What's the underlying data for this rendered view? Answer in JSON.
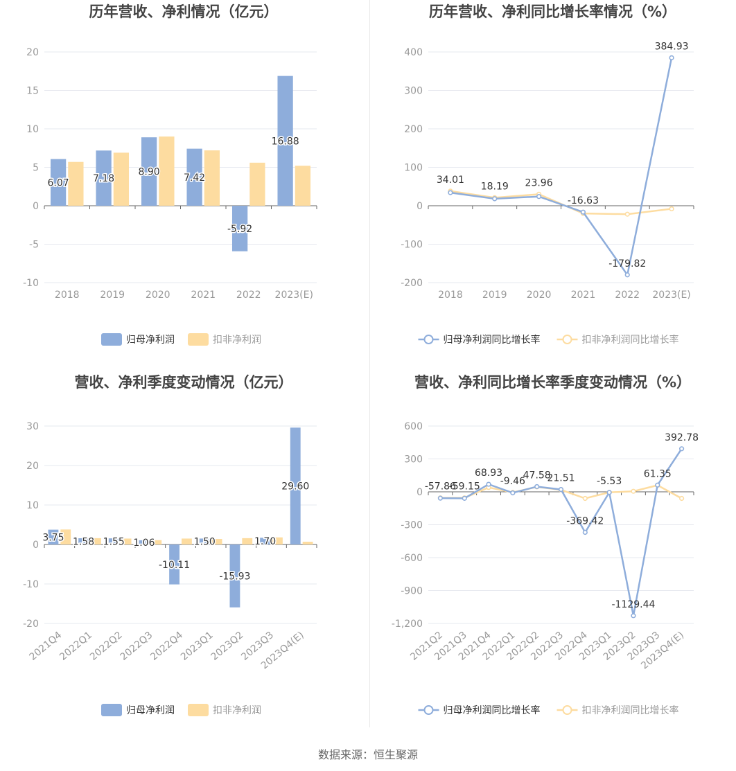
{
  "colors": {
    "primary": "#8eaddb",
    "secondary": "#fddca0",
    "axis": "#999999",
    "grid": "#e6e8ef",
    "zero": "#666666",
    "title": "#444444",
    "label": "#333333"
  },
  "source": "数据来源：恒生聚源",
  "chart_data": [
    {
      "type": "bar",
      "title": "历年营收、净利情况（亿元）",
      "categories": [
        "2018",
        "2019",
        "2020",
        "2021",
        "2022",
        "2023(E)"
      ],
      "ylim": [
        -10,
        20
      ],
      "yticks": [
        -10,
        -5,
        0,
        5,
        10,
        15,
        20
      ],
      "grid": true,
      "legend": "bottom",
      "series": [
        {
          "name": "归母净利润",
          "values": [
            6.07,
            7.18,
            8.9,
            7.42,
            -5.92,
            16.88
          ],
          "labels": [
            "6.07",
            "7.18",
            "8.90",
            "7.42",
            "-5.92",
            "16.88"
          ]
        },
        {
          "name": "扣非净利润",
          "values": [
            5.7,
            6.9,
            9.0,
            7.2,
            5.6,
            5.2
          ]
        }
      ]
    },
    {
      "type": "line",
      "title": "历年营收、净利同比增长率情况（%）",
      "categories": [
        "2018",
        "2019",
        "2020",
        "2021",
        "2022",
        "2023(E)"
      ],
      "ylim": [
        -200,
        400
      ],
      "yticks": [
        -200,
        -100,
        0,
        100,
        200,
        300,
        400
      ],
      "grid": true,
      "legend": "bottom",
      "series": [
        {
          "name": "归母净利润同比增长率",
          "values": [
            34.01,
            18.19,
            23.96,
            -16.63,
            -179.82,
            384.93
          ],
          "labels": [
            "34.01",
            "18.19",
            "23.96",
            "-16.63",
            "-179.82",
            "384.93"
          ]
        },
        {
          "name": "扣非净利润同比增长率",
          "values": [
            38,
            21,
            30,
            -20,
            -22,
            -8
          ]
        }
      ]
    },
    {
      "type": "bar",
      "title": "营收、净利季度变动情况（亿元）",
      "categories": [
        "2021Q4",
        "2022Q1",
        "2022Q2",
        "2022Q3",
        "2022Q4",
        "2023Q1",
        "2023Q2",
        "2023Q3",
        "2023Q4(E)"
      ],
      "ylim": [
        -20,
        30
      ],
      "yticks": [
        -20,
        -10,
        0,
        10,
        20,
        30
      ],
      "grid": true,
      "legend": "bottom",
      "series": [
        {
          "name": "归母净利润",
          "values": [
            3.75,
            1.58,
            1.55,
            1.06,
            -10.11,
            1.5,
            -15.93,
            1.7,
            29.6
          ],
          "labels": [
            "3.75",
            "1.58",
            "1.55",
            "1.06",
            "-10.11",
            "1.50",
            "-15.93",
            "1.70",
            "29.60"
          ]
        },
        {
          "name": "扣非净利润",
          "values": [
            3.8,
            1.6,
            1.5,
            1.1,
            1.5,
            1.4,
            1.6,
            1.8,
            0.7
          ]
        }
      ]
    },
    {
      "type": "line",
      "title": "营收、净利同比增长率季度变动情况（%）",
      "categories": [
        "2021Q2",
        "2021Q3",
        "2021Q4",
        "2022Q1",
        "2022Q2",
        "2022Q3",
        "2022Q4",
        "2023Q1",
        "2023Q2",
        "2023Q3",
        "2023Q4(E)"
      ],
      "ylim": [
        -1200,
        600
      ],
      "yticks": [
        -1200,
        -900,
        -600,
        -300,
        0,
        300,
        600
      ],
      "ytick_labels": [
        "-1,200",
        "-900",
        "-600",
        "-300",
        "0",
        "300",
        "600"
      ],
      "grid": true,
      "legend": "bottom",
      "series": [
        {
          "name": "归母净利润同比增长率",
          "values": [
            -57.86,
            -59.15,
            68.93,
            -9.46,
            47.58,
            21.51,
            -369.42,
            -5.53,
            -1129.44,
            61.35,
            392.78
          ],
          "labels": [
            "-57.86",
            "-59.15",
            "68.93",
            "-9.46",
            "47.58",
            "21.51",
            "-369.42",
            "-5.53",
            "-1129.44",
            "61.35",
            "392.78"
          ]
        },
        {
          "name": "扣非净利润同比增长率",
          "values": [
            -55,
            -55,
            40,
            -5,
            45,
            18,
            -60,
            -5,
            5,
            60,
            -60
          ]
        }
      ]
    }
  ]
}
